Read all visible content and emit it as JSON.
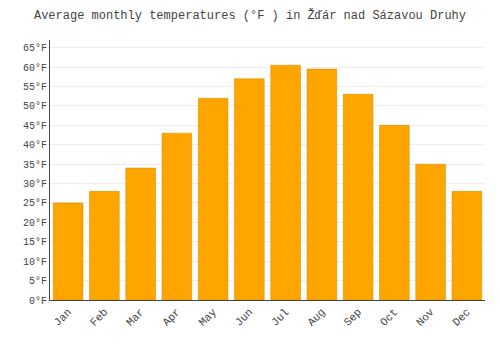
{
  "chart_data": {
    "type": "bar",
    "title": "Average monthly temperatures (°F ) in Žďár nad Sázavou Druhy",
    "categories": [
      "Jan",
      "Feb",
      "Mar",
      "Apr",
      "May",
      "Jun",
      "Jul",
      "Aug",
      "Sep",
      "Oct",
      "Nov",
      "Dec"
    ],
    "values": [
      25,
      28,
      34,
      43,
      52,
      57,
      60.5,
      59.5,
      53,
      45,
      35,
      28
    ],
    "color": "#FFA500",
    "ylim": [
      0,
      67
    ],
    "yticks": [
      {
        "value": 0,
        "label": "0°F"
      },
      {
        "value": 5,
        "label": "5°F"
      },
      {
        "value": 10,
        "label": "10°F"
      },
      {
        "value": 15,
        "label": "15°F"
      },
      {
        "value": 20,
        "label": "20°F"
      },
      {
        "value": 25,
        "label": "25°F"
      },
      {
        "value": 30,
        "label": "30°F"
      },
      {
        "value": 35,
        "label": "35°F"
      },
      {
        "value": 40,
        "label": "40°F"
      },
      {
        "value": 45,
        "label": "45°F"
      },
      {
        "value": 50,
        "label": "50°F"
      },
      {
        "value": 55,
        "label": "55°F"
      },
      {
        "value": 60,
        "label": "60°F"
      },
      {
        "value": 65,
        "label": "65°F"
      }
    ],
    "grid": true
  }
}
